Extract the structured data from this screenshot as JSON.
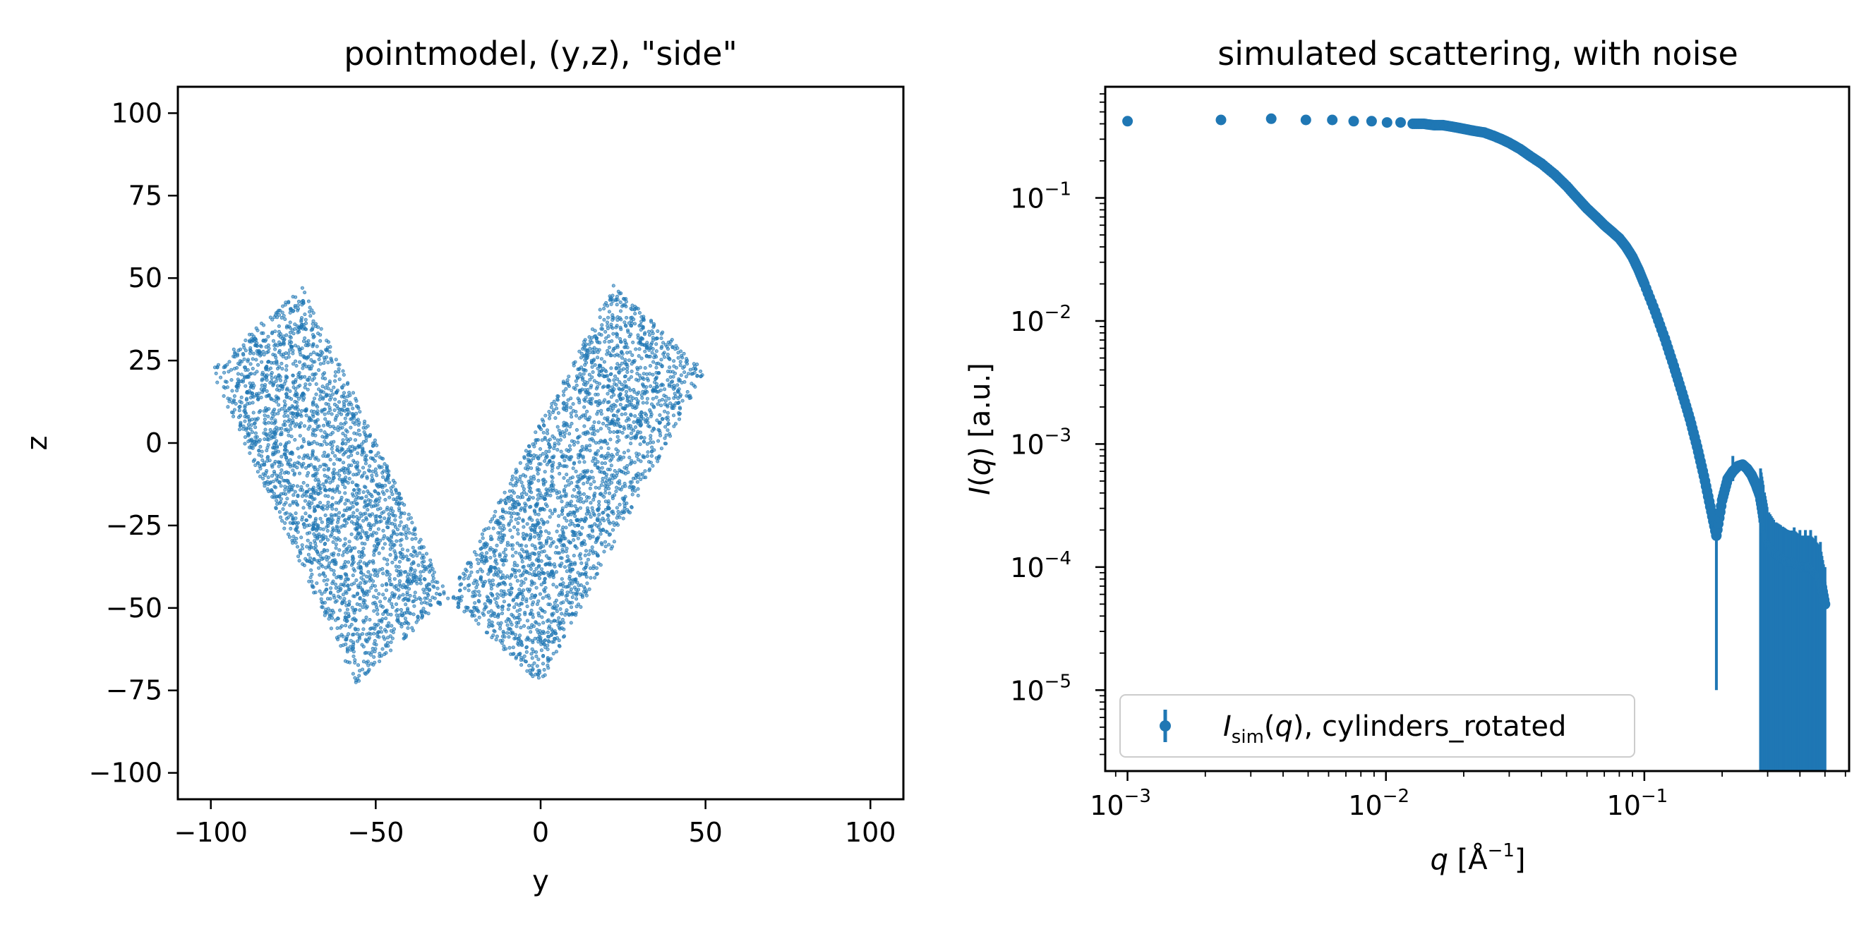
{
  "chart_data": [
    {
      "type": "scatter",
      "title": "pointmodel, (y,z), \"side\"",
      "xlabel": "y",
      "ylabel": "z",
      "xlim": [
        -110,
        110
      ],
      "ylim": [
        -108,
        108
      ],
      "x_ticks": [
        -100,
        -50,
        0,
        50,
        100
      ],
      "y_ticks": [
        -100,
        -75,
        -50,
        -25,
        0,
        25,
        50,
        75,
        100
      ],
      "x_tick_labels": [
        "−100",
        "−50",
        "0",
        "50",
        "100"
      ],
      "y_tick_labels": [
        "−100",
        "−75",
        "−50",
        "−25",
        "0",
        "25",
        "50",
        "75",
        "100"
      ],
      "color": "#1f77b4",
      "grid": false,
      "shape": {
        "description": "V-shape of two rotated cylinders",
        "arm_left": {
          "from": [
            -100,
            22
          ],
          "outer_top": [
            -72,
            48
          ],
          "bottom": [
            -28,
            -47
          ]
        },
        "arm_right": {
          "from": [
            50,
            22
          ],
          "outer_top": [
            22,
            48
          ],
          "bottom": [
            -28,
            -47
          ]
        },
        "point_count": 5000
      }
    },
    {
      "type": "scatter",
      "title": "simulated scattering, with noise",
      "xlabel_var": "q",
      "xlabel_rest": " [Å",
      "xlabel_exp": "−1",
      "xlabel_close": "]",
      "ylabel_var": "I",
      "ylabel_mid": "(",
      "ylabel_var2": "q",
      "ylabel_rest": ") [a.u.]",
      "xscale": "log",
      "yscale": "log",
      "xlim": [
        0.00082,
        0.62
      ],
      "ylim": [
        2.2e-06,
        0.8
      ],
      "x_ticks": [
        0.001,
        0.01,
        0.1
      ],
      "y_ticks": [
        1e-05,
        0.0001,
        0.001,
        0.01,
        0.1
      ],
      "x_tick_base": "10",
      "x_tick_exps": [
        "−3",
        "−2",
        "−1"
      ],
      "y_tick_base": "10",
      "y_tick_exps": [
        "−5",
        "−4",
        "−3",
        "−2",
        "−1"
      ],
      "color": "#1f77b4",
      "legend": {
        "placement": "lower-left",
        "label_var": "I",
        "label_sub": "sim",
        "label_paren": "(",
        "label_var2": "q",
        "label_rest": "), cylinders_rotated"
      },
      "series": [
        {
          "name": "I_sim(q), cylinders_rotated",
          "x": [
            0.001,
            0.0023,
            0.0036,
            0.0049,
            0.0062,
            0.0075,
            0.0088,
            0.0101,
            0.0114,
            0.0127,
            0.014,
            0.0153,
            0.0166,
            0.0179,
            0.0192,
            0.0205,
            0.022,
            0.024,
            0.026,
            0.028,
            0.03,
            0.033,
            0.036,
            0.04,
            0.045,
            0.05,
            0.055,
            0.06,
            0.065,
            0.07,
            0.075,
            0.08,
            0.085,
            0.09,
            0.095,
            0.1,
            0.11,
            0.12,
            0.13,
            0.14,
            0.15,
            0.16,
            0.17,
            0.18,
            0.19,
            0.2,
            0.21,
            0.22,
            0.23,
            0.24,
            0.25,
            0.26,
            0.27,
            0.28,
            0.29,
            0.3,
            0.32,
            0.34,
            0.36,
            0.38,
            0.4,
            0.42,
            0.44,
            0.46,
            0.48,
            0.5
          ],
          "y": [
            0.42,
            0.43,
            0.44,
            0.43,
            0.43,
            0.42,
            0.42,
            0.41,
            0.41,
            0.4,
            0.4,
            0.39,
            0.39,
            0.38,
            0.37,
            0.36,
            0.35,
            0.34,
            0.32,
            0.3,
            0.28,
            0.25,
            0.22,
            0.19,
            0.155,
            0.125,
            0.1,
            0.082,
            0.07,
            0.06,
            0.053,
            0.047,
            0.04,
            0.033,
            0.026,
            0.02,
            0.012,
            0.0072,
            0.0043,
            0.0026,
            0.0016,
            0.00095,
            0.00055,
            0.00031,
            0.00018,
            0.00035,
            0.00052,
            0.0006,
            0.00066,
            0.00068,
            0.00063,
            0.00056,
            0.00047,
            0.00038,
            0.00024,
            0.00016,
            0.00013,
            0.00012,
            0.00011,
            0.00011,
            0.0001,
            0.0001,
            0.0001,
            9e-05,
            8e-05,
            5e-05
          ],
          "err_low": [
            0,
            0,
            0,
            0,
            0,
            0,
            0,
            0,
            0,
            0,
            0,
            0,
            0,
            0,
            0,
            0,
            0,
            0,
            0,
            0,
            0,
            0,
            0,
            0,
            0,
            0,
            0,
            0,
            0,
            0,
            0,
            0,
            0,
            0,
            0,
            0,
            0,
            0,
            0,
            0,
            0,
            0,
            0,
            0,
            0.00017,
            0,
            0,
            0.0001,
            0,
            0,
            0,
            0,
            0,
            0.00015,
            0.00022,
            0.000158,
            0.000128,
            0.000118,
            0.000108,
            0.000108,
            9.88e-05,
            9.88e-05,
            9.88e-05,
            8.88e-05,
            7.88e-05,
            4.88e-05
          ],
          "err_high": [
            0,
            0,
            0,
            0,
            0,
            0,
            0,
            0,
            0,
            0,
            0,
            0,
            0,
            0,
            0,
            0,
            0,
            0,
            0,
            0,
            0,
            0,
            0,
            0,
            0,
            0,
            0,
            0,
            0,
            0,
            0,
            0,
            0,
            0,
            0,
            0,
            0,
            0,
            0,
            0,
            0,
            0,
            0,
            0,
            7e-05,
            0,
            0,
            0.0002,
            0,
            0,
            0,
            0,
            0,
            5e-05,
            8e-05,
            8e-05,
            8e-05,
            8e-05,
            9e-05,
            0.0001,
            0.0001,
            0.0001,
            0.0001,
            9e-05,
            8e-05,
            5e-05
          ]
        }
      ]
    }
  ]
}
